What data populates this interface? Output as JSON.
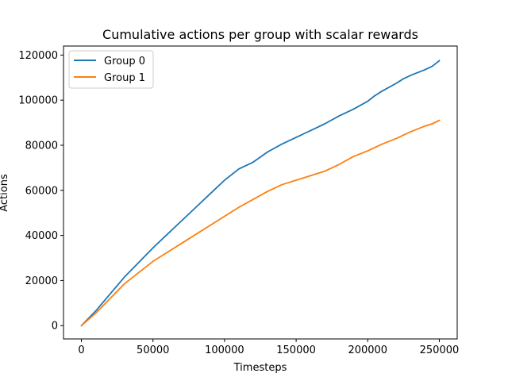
{
  "chart_data": {
    "type": "line",
    "title": "Cumulative actions per group with scalar rewards",
    "xlabel": "Timesteps",
    "ylabel": "Actions",
    "xlim": [
      -12500,
      262500
    ],
    "ylim": [
      -5900,
      124000
    ],
    "xticks": [
      0,
      50000,
      100000,
      150000,
      200000,
      250000
    ],
    "xtick_labels": [
      "0",
      "50000",
      "100000",
      "150000",
      "200000",
      "250000"
    ],
    "yticks": [
      0,
      20000,
      40000,
      60000,
      80000,
      100000,
      120000
    ],
    "ytick_labels": [
      "0",
      "20000",
      "40000",
      "60000",
      "80000",
      "100000",
      "120000"
    ],
    "grid": false,
    "legend_position": "upper-left",
    "series": [
      {
        "name": "Group 0",
        "color": "#1f77b4",
        "x": [
          0,
          10000,
          20000,
          30000,
          40000,
          50000,
          60000,
          70000,
          80000,
          90000,
          100000,
          110000,
          120000,
          130000,
          140000,
          150000,
          160000,
          165000,
          170000,
          180000,
          185000,
          190000,
          200000,
          205000,
          210000,
          220000,
          225000,
          230000,
          240000,
          245000,
          250000
        ],
        "values": [
          0,
          6500,
          14000,
          21500,
          28000,
          34500,
          40500,
          46500,
          52500,
          58500,
          64500,
          69500,
          72500,
          77000,
          80500,
          83500,
          86500,
          88000,
          89500,
          93000,
          94500,
          96000,
          99500,
          102000,
          104000,
          107500,
          109500,
          111000,
          113500,
          115000,
          117500
        ]
      },
      {
        "name": "Group 1",
        "color": "#ff7f0e",
        "x": [
          0,
          10000,
          20000,
          30000,
          40000,
          50000,
          60000,
          70000,
          80000,
          90000,
          100000,
          110000,
          120000,
          130000,
          140000,
          150000,
          160000,
          170000,
          180000,
          190000,
          200000,
          210000,
          220000,
          230000,
          240000,
          245000,
          250000
        ],
        "values": [
          0,
          5500,
          12000,
          18500,
          23500,
          28500,
          32500,
          36500,
          40500,
          44500,
          48500,
          52500,
          56000,
          59500,
          62500,
          64500,
          66500,
          68500,
          71500,
          75000,
          77500,
          80500,
          83000,
          86000,
          88500,
          89500,
          91000
        ]
      }
    ]
  }
}
